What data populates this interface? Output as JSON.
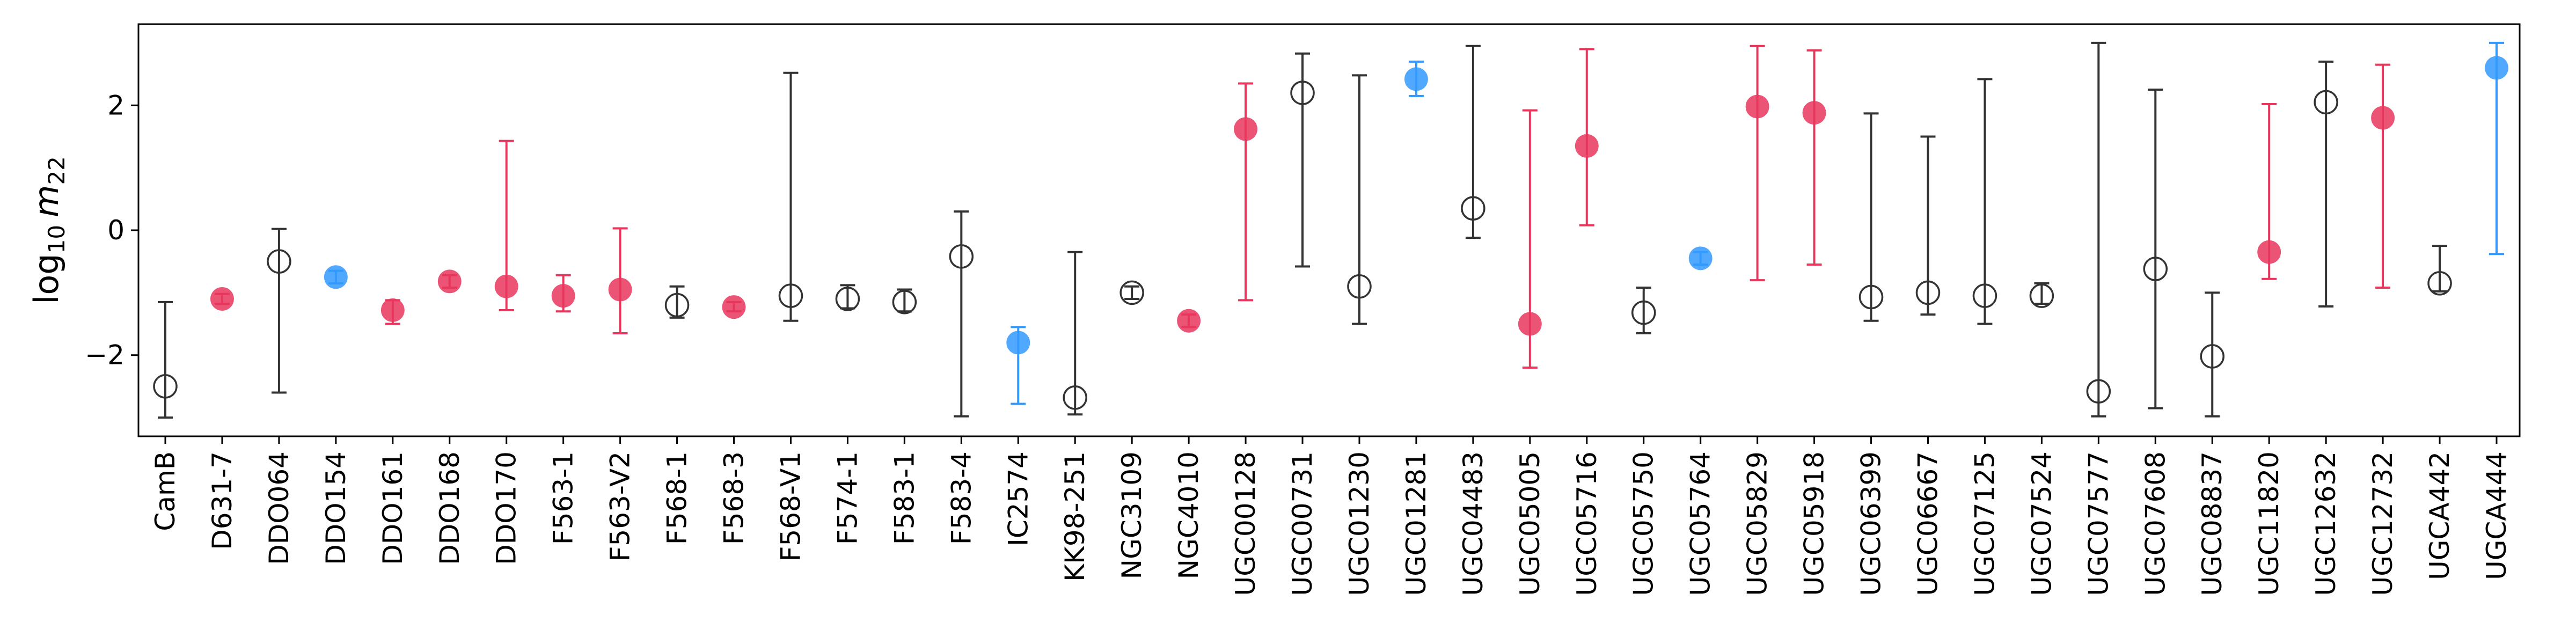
{
  "chart_data": {
    "type": "scatter",
    "title": "",
    "xlabel": "",
    "ylabel": "log10 m22",
    "ylabel_parts": {
      "base": "log",
      "sub": "10",
      "var": "m",
      "var_sub": "22"
    },
    "ylim": [
      -3.3,
      3.3
    ],
    "yticks": [
      -2,
      0,
      2
    ],
    "ytick_labels": [
      "−2",
      "0",
      "2"
    ],
    "grid": false,
    "colors": {
      "open": "#333333",
      "red": "#e8365d",
      "blue": "#3399ff"
    },
    "categories": [
      "CamB",
      "D631-7",
      "DDO064",
      "DDO154",
      "DDO161",
      "DDO168",
      "DDO170",
      "F563-1",
      "F563-V2",
      "F568-1",
      "F568-3",
      "F568-V1",
      "F574-1",
      "F583-1",
      "F583-4",
      "IC2574",
      "KK98-251",
      "NGC3109",
      "NGC4010",
      "UGC00128",
      "UGC00731",
      "UGC01230",
      "UGC01281",
      "UGC04483",
      "UGC05005",
      "UGC05716",
      "UGC05750",
      "UGC05764",
      "UGC05829",
      "UGC05918",
      "UGC06399",
      "UGC06667",
      "UGC07125",
      "UGC07524",
      "UGC07577",
      "UGC07608",
      "UGC08837",
      "UGC11820",
      "UGC12632",
      "UGC12732",
      "UGCA442",
      "UGCA444"
    ],
    "points": [
      {
        "y": -2.5,
        "lo": -3.0,
        "hi": -1.15,
        "style": "open"
      },
      {
        "y": -1.1,
        "lo": -1.18,
        "hi": -1.02,
        "style": "red"
      },
      {
        "y": -0.5,
        "lo": -2.6,
        "hi": 0.02,
        "style": "open"
      },
      {
        "y": -0.75,
        "lo": -0.85,
        "hi": -0.65,
        "style": "blue"
      },
      {
        "y": -1.28,
        "lo": -1.5,
        "hi": -1.12,
        "style": "red"
      },
      {
        "y": -0.82,
        "lo": -0.92,
        "hi": -0.72,
        "style": "red"
      },
      {
        "y": -0.9,
        "lo": -1.28,
        "hi": 1.43,
        "style": "red"
      },
      {
        "y": -1.05,
        "lo": -1.3,
        "hi": -0.72,
        "style": "red"
      },
      {
        "y": -0.95,
        "lo": -1.65,
        "hi": 0.03,
        "style": "red"
      },
      {
        "y": -1.2,
        "lo": -1.4,
        "hi": -0.9,
        "style": "open"
      },
      {
        "y": -1.23,
        "lo": -1.3,
        "hi": -1.15,
        "style": "red"
      },
      {
        "y": -1.05,
        "lo": -1.45,
        "hi": 2.52,
        "style": "open"
      },
      {
        "y": -1.1,
        "lo": -1.25,
        "hi": -0.88,
        "style": "open"
      },
      {
        "y": -1.15,
        "lo": -1.3,
        "hi": -0.95,
        "style": "open"
      },
      {
        "y": -0.42,
        "lo": -2.98,
        "hi": 0.3,
        "style": "open"
      },
      {
        "y": -1.8,
        "lo": -2.78,
        "hi": -1.55,
        "style": "blue"
      },
      {
        "y": -2.68,
        "lo": -2.95,
        "hi": -0.35,
        "style": "open"
      },
      {
        "y": -1.0,
        "lo": -1.1,
        "hi": -0.9,
        "style": "open"
      },
      {
        "y": -1.45,
        "lo": -1.55,
        "hi": -1.35,
        "style": "red"
      },
      {
        "y": 1.62,
        "lo": -1.12,
        "hi": 2.35,
        "style": "red"
      },
      {
        "y": 2.2,
        "lo": -0.58,
        "hi": 2.83,
        "style": "open"
      },
      {
        "y": -0.9,
        "lo": -1.5,
        "hi": 2.48,
        "style": "open"
      },
      {
        "y": 2.42,
        "lo": 2.15,
        "hi": 2.7,
        "style": "blue"
      },
      {
        "y": 0.35,
        "lo": -0.12,
        "hi": 2.95,
        "style": "open"
      },
      {
        "y": -1.5,
        "lo": -2.2,
        "hi": 1.92,
        "style": "red"
      },
      {
        "y": 1.35,
        "lo": 0.08,
        "hi": 2.9,
        "style": "red"
      },
      {
        "y": -1.32,
        "lo": -1.65,
        "hi": -0.92,
        "style": "open"
      },
      {
        "y": -0.45,
        "lo": -0.55,
        "hi": -0.35,
        "style": "blue"
      },
      {
        "y": 1.98,
        "lo": -0.8,
        "hi": 2.95,
        "style": "red"
      },
      {
        "y": 1.88,
        "lo": -0.55,
        "hi": 2.88,
        "style": "red"
      },
      {
        "y": -1.07,
        "lo": -1.45,
        "hi": 1.87,
        "style": "open"
      },
      {
        "y": -1.0,
        "lo": -1.35,
        "hi": 1.5,
        "style": "open"
      },
      {
        "y": -1.05,
        "lo": -1.5,
        "hi": 2.42,
        "style": "open"
      },
      {
        "y": -1.05,
        "lo": -1.18,
        "hi": -0.85,
        "style": "open"
      },
      {
        "y": -2.58,
        "lo": -2.98,
        "hi": 3.0,
        "style": "open"
      },
      {
        "y": -0.62,
        "lo": -2.85,
        "hi": 2.25,
        "style": "open"
      },
      {
        "y": -2.02,
        "lo": -2.98,
        "hi": -1.0,
        "style": "open"
      },
      {
        "y": -0.35,
        "lo": -0.78,
        "hi": 2.02,
        "style": "red"
      },
      {
        "y": 2.05,
        "lo": -1.22,
        "hi": 2.7,
        "style": "open"
      },
      {
        "y": 1.8,
        "lo": -0.92,
        "hi": 2.65,
        "style": "red"
      },
      {
        "y": -0.85,
        "lo": -0.98,
        "hi": -0.25,
        "style": "open"
      },
      {
        "y": 2.6,
        "lo": -0.38,
        "hi": 3.0,
        "style": "blue"
      }
    ]
  }
}
